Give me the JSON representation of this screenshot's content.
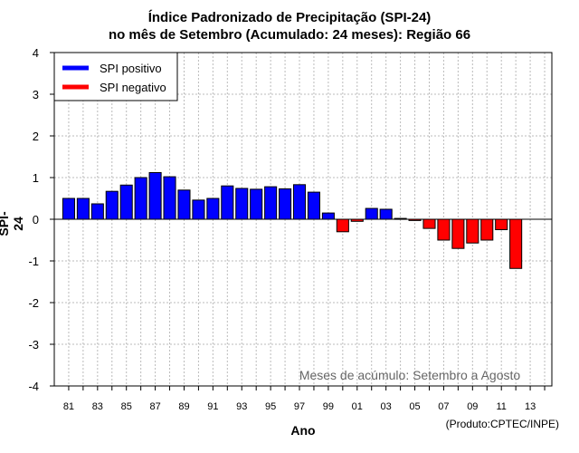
{
  "chart_data": {
    "type": "bar",
    "title": "Índice Padronizado de Precipitação (SPI-24)",
    "subtitle": "no mês de Setembro (Acumulado: 24 meses): Região 66",
    "xlabel": "Ano",
    "ylabel": "SPI-24",
    "ylim": [
      -4,
      4
    ],
    "yticks": [
      -4,
      -3,
      -2,
      -1,
      0,
      1,
      2,
      3,
      4
    ],
    "xtick_labels": [
      "81",
      "83",
      "85",
      "87",
      "89",
      "91",
      "93",
      "95",
      "97",
      "99",
      "01",
      "03",
      "05",
      "07",
      "09",
      "11",
      "13"
    ],
    "categories": [
      "1981",
      "1982",
      "1983",
      "1984",
      "1985",
      "1986",
      "1987",
      "1988",
      "1989",
      "1990",
      "1991",
      "1992",
      "1993",
      "1994",
      "1995",
      "1996",
      "1997",
      "1998",
      "1999",
      "2000",
      "2001",
      "2002",
      "2003",
      "2004",
      "2005",
      "2006",
      "2007",
      "2008",
      "2009",
      "2010",
      "2011",
      "2012",
      "2013",
      "2014"
    ],
    "values": [
      0.5,
      0.5,
      0.37,
      0.67,
      0.82,
      1.0,
      1.12,
      1.02,
      0.7,
      0.46,
      0.5,
      0.8,
      0.74,
      0.72,
      0.78,
      0.73,
      0.83,
      0.65,
      0.15,
      -0.3,
      -0.05,
      0.26,
      0.24,
      0.02,
      -0.03,
      -0.22,
      -0.5,
      -0.7,
      -0.57,
      -0.5,
      -0.25,
      -1.18,
      null,
      null
    ],
    "legend": [
      {
        "label": "SPI positivo",
        "color": "#0000ff"
      },
      {
        "label": "SPI negativo",
        "color": "#ff0000"
      }
    ],
    "legend_position": "top-left",
    "annotation": "Meses de acúmulo: Setembro a Agosto",
    "grid": true,
    "colors": {
      "positive": "#0000ff",
      "negative": "#ff0000",
      "grid": "#bbbbbb",
      "annotation": "#666666"
    }
  },
  "credit": "(Produto:CPTEC/INPE)"
}
